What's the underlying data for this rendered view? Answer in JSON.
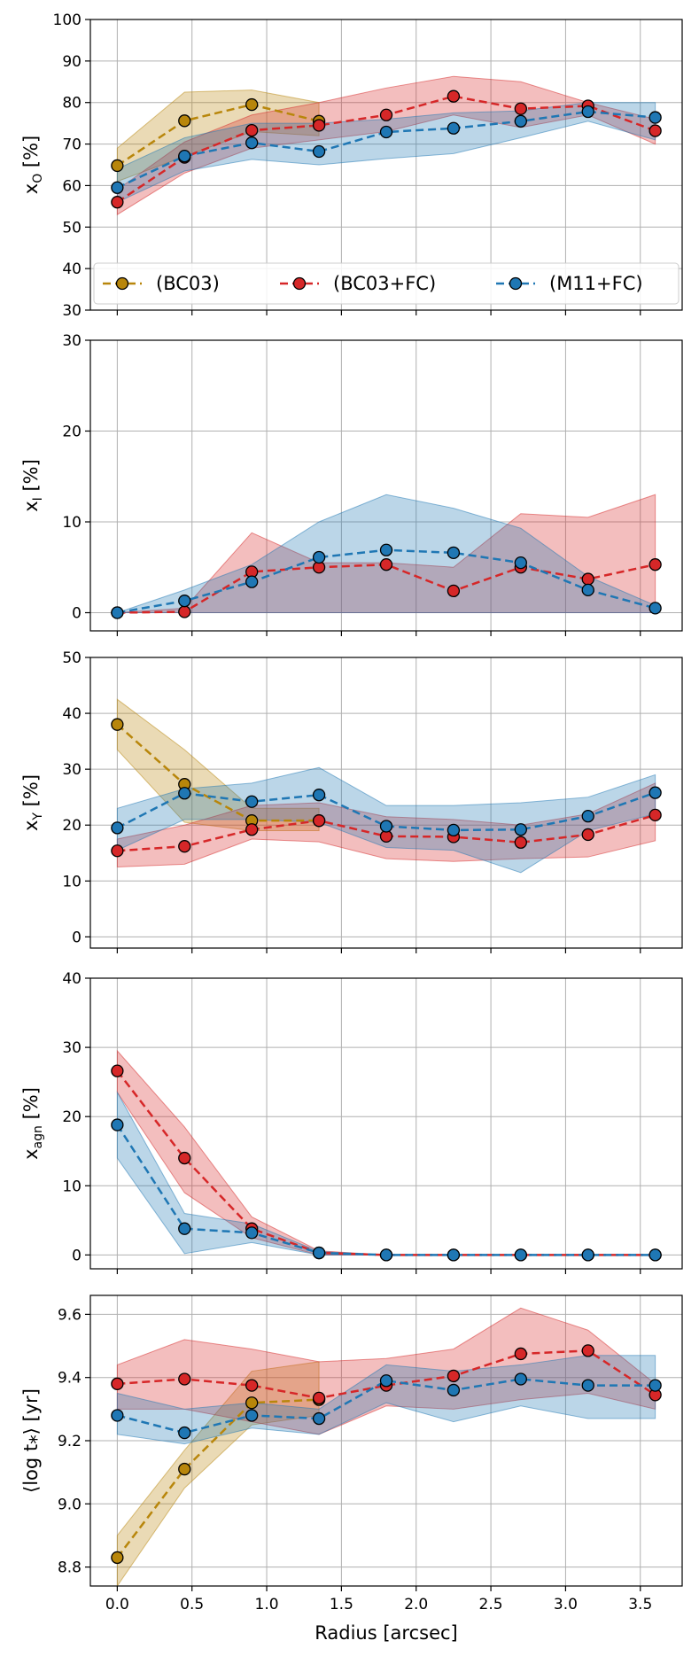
{
  "colors": {
    "bc03": "#b8860b",
    "bc03fc": "#d62728",
    "m11fc": "#1f77b4",
    "grid": "#b0b0b0",
    "axis": "#000000"
  },
  "legend": {
    "entries": [
      "(BC03)",
      "(BC03+FC)",
      "(M11+FC)"
    ],
    "placement": "lower-left of top panel"
  },
  "chart_data": [
    {
      "type": "line",
      "title": "",
      "ylabel_main": "x",
      "ylabel_sub": "O",
      "ylabel_suffix": " [%]",
      "ylim": [
        30,
        100
      ],
      "yticks": [
        30,
        40,
        50,
        60,
        70,
        80,
        90,
        100
      ],
      "ytick_labels": [
        "30",
        "40",
        "50",
        "60",
        "70",
        "80",
        "90",
        "100"
      ],
      "xlim": [
        -0.18,
        3.78
      ],
      "x": [
        0.0,
        0.45,
        0.9,
        1.35,
        1.8,
        2.25,
        2.7,
        3.15,
        3.6
      ],
      "series": [
        {
          "name": "(BC03)",
          "key": "bc03",
          "x": [
            0.0,
            0.45,
            0.9,
            1.35,
            1.8,
            2.25,
            2.7,
            3.15,
            3.6
          ],
          "values": [
            64.8,
            75.6,
            79.5,
            75.5,
            null,
            null,
            null,
            null,
            null
          ],
          "lower": [
            61,
            67,
            73,
            72,
            null,
            null,
            null,
            null,
            null
          ],
          "upper": [
            69,
            82.5,
            83,
            80,
            null,
            null,
            null,
            null,
            null
          ]
        },
        {
          "name": "(BC03+FC)",
          "key": "bc03fc",
          "x": [
            0.0,
            0.45,
            0.9,
            1.35,
            1.8,
            2.25,
            2.7,
            3.15,
            3.6
          ],
          "values": [
            56.0,
            66.8,
            73.3,
            74.5,
            77.0,
            81.5,
            78.5,
            79.2,
            73.2
          ],
          "lower": [
            53,
            63,
            69,
            71,
            73,
            77,
            74,
            77,
            70
          ],
          "upper": [
            59,
            70.5,
            77,
            80,
            83.5,
            86.3,
            85,
            80,
            76
          ]
        },
        {
          "name": "(M11+FC)",
          "key": "m11fc",
          "x": [
            0.0,
            0.45,
            0.9,
            1.35,
            1.8,
            2.25,
            2.7,
            3.15,
            3.6
          ],
          "values": [
            59.5,
            67.1,
            70.3,
            68.2,
            72.9,
            73.8,
            75.5,
            77.8,
            76.4
          ],
          "lower": [
            56,
            63.5,
            66.3,
            65,
            66.5,
            67.7,
            71.5,
            75.5,
            71
          ],
          "upper": [
            64,
            71.5,
            75,
            75,
            76,
            77.5,
            78,
            80,
            80
          ]
        }
      ]
    },
    {
      "type": "line",
      "title": "",
      "ylabel_main": "x",
      "ylabel_sub": "I",
      "ylabel_suffix": " [%]",
      "ylim": [
        -2,
        30
      ],
      "yticks": [
        0,
        10,
        20,
        30
      ],
      "ytick_labels": [
        "0",
        "10",
        "20",
        "30"
      ],
      "xlim": [
        -0.18,
        3.78
      ],
      "x": [
        0.0,
        0.45,
        0.9,
        1.35,
        1.8,
        2.25,
        2.7,
        3.15,
        3.6
      ],
      "series": [
        {
          "name": "(BC03+FC)",
          "key": "bc03fc",
          "x": [
            0.0,
            0.45,
            0.9,
            1.35,
            1.8,
            2.25,
            2.7,
            3.15,
            3.6
          ],
          "values": [
            0.0,
            0.1,
            4.5,
            5.0,
            5.3,
            2.4,
            5.0,
            3.7,
            5.3
          ],
          "lower": [
            0,
            0,
            0,
            0,
            0,
            0,
            0,
            0,
            0
          ],
          "upper": [
            0,
            0.5,
            8.8,
            5.5,
            5.5,
            5.0,
            10.9,
            10.5,
            13.0
          ]
        },
        {
          "name": "(M11+FC)",
          "key": "m11fc",
          "x": [
            0.0,
            0.45,
            0.9,
            1.35,
            1.8,
            2.25,
            2.7,
            3.15,
            3.6
          ],
          "values": [
            0.0,
            1.3,
            3.4,
            6.1,
            6.9,
            6.6,
            5.5,
            2.5,
            0.5
          ],
          "lower": [
            0,
            0,
            0,
            0,
            0,
            0,
            0,
            0,
            0
          ],
          "upper": [
            0,
            2.5,
            5.3,
            10.0,
            13.0,
            11.5,
            9.3,
            4.0,
            0.8
          ]
        }
      ]
    },
    {
      "type": "line",
      "title": "",
      "ylabel_main": "x",
      "ylabel_sub": "Y",
      "ylabel_suffix": " [%]",
      "ylim": [
        -2,
        50
      ],
      "yticks": [
        0,
        10,
        20,
        30,
        40,
        50
      ],
      "ytick_labels": [
        "0",
        "10",
        "20",
        "30",
        "40",
        "50"
      ],
      "xlim": [
        -0.18,
        3.78
      ],
      "x": [
        0.0,
        0.45,
        0.9,
        1.35,
        1.8,
        2.25,
        2.7,
        3.15,
        3.6
      ],
      "series": [
        {
          "name": "(BC03)",
          "key": "bc03",
          "x": [
            0.0,
            0.45,
            0.9,
            1.35,
            1.8,
            2.25,
            2.7,
            3.15,
            3.6
          ],
          "values": [
            38.0,
            27.3,
            20.8,
            20.8,
            null,
            null,
            null,
            null,
            null
          ],
          "lower": [
            33.5,
            20.5,
            19,
            19,
            null,
            null,
            null,
            null,
            null
          ],
          "upper": [
            42.5,
            33.5,
            23,
            23,
            null,
            null,
            null,
            null,
            null
          ]
        },
        {
          "name": "(BC03+FC)",
          "key": "bc03fc",
          "x": [
            0.0,
            0.45,
            0.9,
            1.35,
            1.8,
            2.25,
            2.7,
            3.15,
            3.6
          ],
          "values": [
            15.4,
            16.2,
            19.2,
            20.8,
            18.0,
            17.9,
            16.9,
            18.3,
            21.8
          ],
          "lower": [
            12.5,
            13.0,
            17.5,
            17.0,
            14.0,
            13.5,
            14.0,
            14.3,
            17.2
          ],
          "upper": [
            17.5,
            20.0,
            23.5,
            24.0,
            21.5,
            21.0,
            20.0,
            22.0,
            27.5
          ]
        },
        {
          "name": "(M11+FC)",
          "key": "m11fc",
          "x": [
            0.0,
            0.45,
            0.9,
            1.35,
            1.8,
            2.25,
            2.7,
            3.15,
            3.6
          ],
          "values": [
            19.5,
            25.7,
            24.2,
            25.4,
            19.8,
            19.1,
            19.2,
            21.6,
            25.8
          ],
          "lower": [
            15.5,
            21.0,
            21.0,
            20.5,
            16.0,
            15.5,
            11.5,
            19.0,
            22.0
          ],
          "upper": [
            23.0,
            26.5,
            27.5,
            30.3,
            23.5,
            23.5,
            24.0,
            25.0,
            29.0
          ]
        }
      ]
    },
    {
      "type": "line",
      "title": "",
      "ylabel_main": "x",
      "ylabel_sub": "agn",
      "ylabel_suffix": " [%]",
      "ylim": [
        -2,
        40
      ],
      "yticks": [
        0,
        10,
        20,
        30,
        40
      ],
      "ytick_labels": [
        "0",
        "10",
        "20",
        "30",
        "40"
      ],
      "xlim": [
        -0.18,
        3.78
      ],
      "x": [
        0.0,
        0.45,
        0.9,
        1.35,
        1.8,
        2.25,
        2.7,
        3.15,
        3.6
      ],
      "series": [
        {
          "name": "(BC03+FC)",
          "key": "bc03fc",
          "x": [
            0.0,
            0.45,
            0.9,
            1.35,
            1.8,
            2.25,
            2.7,
            3.15,
            3.6
          ],
          "values": [
            26.6,
            14.0,
            3.8,
            0.3,
            0.0,
            0.0,
            0.0,
            0.0,
            0.0
          ],
          "lower": [
            23.5,
            9.0,
            2.5,
            0,
            0,
            0,
            0,
            0,
            0
          ],
          "upper": [
            29.5,
            18.5,
            5.5,
            0.6,
            0,
            0,
            0,
            0,
            0
          ]
        },
        {
          "name": "(M11+FC)",
          "key": "m11fc",
          "x": [
            0.0,
            0.45,
            0.9,
            1.35,
            1.8,
            2.25,
            2.7,
            3.15,
            3.6
          ],
          "values": [
            18.8,
            3.8,
            3.2,
            0.3,
            0.0,
            0.0,
            0.0,
            0.0,
            0.0
          ],
          "lower": [
            14.0,
            0.2,
            1.8,
            0,
            0,
            0,
            0,
            0,
            0
          ],
          "upper": [
            23.5,
            6.0,
            4.5,
            0.5,
            0,
            0,
            0,
            0,
            0
          ]
        }
      ]
    },
    {
      "type": "line",
      "title": "",
      "ylabel_text": "⟨log t⁎⟩ [yr]",
      "ylim": [
        8.74,
        9.66
      ],
      "yticks": [
        8.8,
        9.0,
        9.2,
        9.4,
        9.6
      ],
      "ytick_labels": [
        "8.8",
        "9.0",
        "9.2",
        "9.4",
        "9.6"
      ],
      "xlabel": "Radius [arcsec]",
      "xticks": [
        0.0,
        0.5,
        1.0,
        1.5,
        2.0,
        2.5,
        3.0,
        3.5
      ],
      "xtick_labels": [
        "0.0",
        "0.5",
        "1.0",
        "1.5",
        "2.0",
        "2.5",
        "3.0",
        "3.5"
      ],
      "xlim": [
        -0.18,
        3.78
      ],
      "x": [
        0.0,
        0.45,
        0.9,
        1.35,
        1.8,
        2.25,
        2.7,
        3.15,
        3.6
      ],
      "series": [
        {
          "name": "(BC03)",
          "key": "bc03",
          "x": [
            0.0,
            0.45,
            0.9,
            1.35,
            1.8,
            2.25,
            2.7,
            3.15,
            3.6
          ],
          "values": [
            8.83,
            9.11,
            9.32,
            9.33,
            null,
            null,
            null,
            null,
            null
          ],
          "lower": [
            8.74,
            9.05,
            9.25,
            9.28,
            null,
            null,
            null,
            null,
            null
          ],
          "upper": [
            8.9,
            9.17,
            9.42,
            9.45,
            null,
            null,
            null,
            null,
            null
          ]
        },
        {
          "name": "(BC03+FC)",
          "key": "bc03fc",
          "x": [
            0.0,
            0.45,
            0.9,
            1.35,
            1.8,
            2.25,
            2.7,
            3.15,
            3.6
          ],
          "values": [
            9.38,
            9.395,
            9.375,
            9.335,
            9.375,
            9.405,
            9.475,
            9.485,
            9.345
          ],
          "lower": [
            9.3,
            9.3,
            9.26,
            9.22,
            9.31,
            9.3,
            9.33,
            9.35,
            9.3
          ],
          "upper": [
            9.44,
            9.52,
            9.49,
            9.45,
            9.46,
            9.49,
            9.62,
            9.55,
            9.38
          ]
        },
        {
          "name": "(M11+FC)",
          "key": "m11fc",
          "x": [
            0.0,
            0.45,
            0.9,
            1.35,
            1.8,
            2.25,
            2.7,
            3.15,
            3.6
          ],
          "values": [
            9.28,
            9.225,
            9.28,
            9.27,
            9.39,
            9.36,
            9.395,
            9.375,
            9.375
          ],
          "lower": [
            9.22,
            9.19,
            9.24,
            9.22,
            9.32,
            9.26,
            9.31,
            9.27,
            9.27
          ],
          "upper": [
            9.35,
            9.3,
            9.32,
            9.3,
            9.44,
            9.42,
            9.44,
            9.47,
            9.47
          ]
        }
      ]
    }
  ]
}
